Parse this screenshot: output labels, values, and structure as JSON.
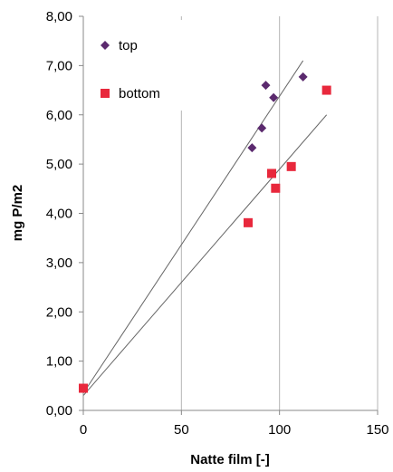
{
  "chart_data": {
    "type": "scatter",
    "xlabel": "Natte film [-]",
    "ylabel": "mg P/m2",
    "xlim": [
      0,
      150
    ],
    "ylim": [
      0,
      8
    ],
    "xticks": [
      0,
      50,
      100,
      150
    ],
    "xtick_labels": [
      "0",
      "50",
      "100",
      "150"
    ],
    "yticks": [
      0,
      1,
      2,
      3,
      4,
      5,
      6,
      7,
      8
    ],
    "ytick_labels": [
      "0,00",
      "1,00",
      "2,00",
      "3,00",
      "4,00",
      "5,00",
      "6,00",
      "7,00",
      "8,00"
    ],
    "grid": "vertical",
    "legend_position": "top-left",
    "series": [
      {
        "name": "top",
        "marker": "diamond",
        "color": "#5b2a6e",
        "points": [
          {
            "x": 0,
            "y": 0.45
          },
          {
            "x": 86,
            "y": 5.33
          },
          {
            "x": 91,
            "y": 5.73
          },
          {
            "x": 93,
            "y": 6.6
          },
          {
            "x": 97,
            "y": 6.35
          },
          {
            "x": 112,
            "y": 6.77
          }
        ]
      },
      {
        "name": "bottom",
        "marker": "square",
        "color": "#e8283c",
        "points": [
          {
            "x": 0,
            "y": 0.45
          },
          {
            "x": 84,
            "y": 3.81
          },
          {
            "x": 96,
            "y": 4.81
          },
          {
            "x": 98,
            "y": 4.51
          },
          {
            "x": 106,
            "y": 4.95
          },
          {
            "x": 124,
            "y": 6.5
          }
        ]
      }
    ],
    "trendlines": [
      {
        "series": "top",
        "x": [
          0,
          112
        ],
        "y": [
          0.35,
          7.1
        ],
        "color": "#666666"
      },
      {
        "series": "bottom",
        "x": [
          0,
          124
        ],
        "y": [
          0.3,
          6.0
        ],
        "color": "#666666"
      }
    ]
  }
}
